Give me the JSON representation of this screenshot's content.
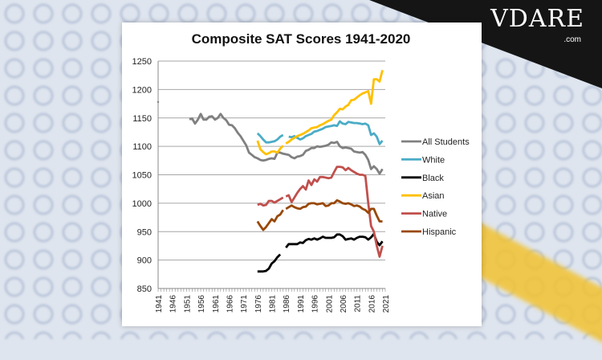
{
  "logo": {
    "text": "VDARE",
    "suffix": ".com"
  },
  "chart_data": {
    "type": "line",
    "title": "Composite SAT Scores 1941-2020",
    "xlabel": "",
    "ylabel": "",
    "xlim": [
      1941,
      2021
    ],
    "ylim": [
      850,
      1250
    ],
    "yticks": [
      850,
      900,
      950,
      1000,
      1050,
      1100,
      1150,
      1200,
      1250
    ],
    "xticks": [
      1941,
      1946,
      1951,
      1956,
      1961,
      1966,
      1971,
      1976,
      1981,
      1986,
      1991,
      1996,
      2001,
      2006,
      2011,
      2016,
      2021
    ],
    "grid": "horizontal",
    "legend": "right",
    "series": [
      {
        "name": "All Students",
        "color": "#808080",
        "points": [
          [
            1941,
            1178
          ],
          null,
          [
            1952,
            1148
          ],
          [
            1953,
            1149
          ],
          [
            1954,
            1140
          ],
          [
            1955,
            1147
          ],
          [
            1956,
            1157
          ],
          [
            1957,
            1147
          ],
          [
            1958,
            1147
          ],
          [
            1959,
            1152
          ],
          [
            1960,
            1153
          ],
          [
            1961,
            1147
          ],
          [
            1962,
            1150
          ],
          [
            1963,
            1157
          ],
          [
            1964,
            1150
          ],
          [
            1965,
            1146
          ],
          [
            1966,
            1138
          ],
          [
            1967,
            1137
          ],
          [
            1968,
            1132
          ],
          [
            1969,
            1124
          ],
          [
            1970,
            1118
          ],
          [
            1971,
            1110
          ],
          [
            1972,
            1102
          ],
          [
            1973,
            1089
          ],
          [
            1974,
            1085
          ],
          [
            1975,
            1081
          ],
          [
            1976,
            1079
          ],
          [
            1977,
            1076
          ],
          [
            1978,
            1075
          ],
          [
            1979,
            1076
          ],
          [
            1980,
            1078
          ],
          [
            1981,
            1079
          ],
          [
            1982,
            1078
          ],
          [
            1983,
            1089
          ],
          [
            1984,
            1089
          ],
          [
            1985,
            1087
          ],
          [
            1986,
            1086
          ],
          [
            1987,
            1085
          ],
          [
            1988,
            1081
          ],
          [
            1989,
            1079
          ],
          [
            1990,
            1082
          ],
          [
            1991,
            1083
          ],
          [
            1992,
            1085
          ],
          [
            1993,
            1092
          ],
          [
            1994,
            1094
          ],
          [
            1995,
            1097
          ],
          [
            1996,
            1097
          ],
          [
            1997,
            1100
          ],
          [
            1998,
            1099
          ],
          [
            1999,
            1100
          ],
          [
            2000,
            1101
          ],
          [
            2001,
            1103
          ],
          [
            2002,
            1107
          ],
          [
            2003,
            1106
          ],
          [
            2004,
            1108
          ],
          [
            2005,
            1100
          ],
          [
            2006,
            1097
          ],
          [
            2007,
            1098
          ],
          [
            2008,
            1097
          ],
          [
            2009,
            1096
          ],
          [
            2010,
            1091
          ],
          [
            2011,
            1090
          ],
          [
            2012,
            1089
          ],
          [
            2013,
            1090
          ],
          [
            2014,
            1085
          ],
          [
            2015,
            1076
          ],
          [
            2016,
            1060
          ],
          [
            2017,
            1065
          ],
          [
            2018,
            1060
          ],
          [
            2019,
            1052
          ],
          [
            2020,
            1060
          ]
        ]
      },
      {
        "name": "White",
        "color": "#4bacc6",
        "points": [
          [
            1976,
            1123
          ],
          [
            1977,
            1118
          ],
          [
            1978,
            1112
          ],
          [
            1979,
            1107
          ],
          [
            1980,
            1107
          ],
          [
            1981,
            1108
          ],
          [
            1982,
            1109
          ],
          [
            1983,
            1112
          ],
          [
            1984,
            1117
          ],
          [
            1985,
            1120
          ],
          null,
          [
            1987,
            1117
          ],
          [
            1988,
            1116
          ],
          [
            1989,
            1118
          ],
          [
            1990,
            1115
          ],
          [
            1991,
            1112
          ],
          [
            1992,
            1114
          ],
          [
            1993,
            1118
          ],
          [
            1994,
            1120
          ],
          [
            1995,
            1122
          ],
          [
            1996,
            1126
          ],
          [
            1997,
            1127
          ],
          [
            1998,
            1129
          ],
          [
            1999,
            1131
          ],
          [
            2000,
            1134
          ],
          [
            2001,
            1135
          ],
          [
            2002,
            1136
          ],
          [
            2003,
            1137
          ],
          [
            2004,
            1136
          ],
          [
            2005,
            1144
          ],
          [
            2006,
            1140
          ],
          [
            2007,
            1139
          ],
          [
            2008,
            1143
          ],
          [
            2009,
            1142
          ],
          [
            2010,
            1141
          ],
          [
            2011,
            1141
          ],
          [
            2012,
            1140
          ],
          [
            2013,
            1139
          ],
          [
            2014,
            1140
          ],
          [
            2015,
            1137
          ],
          [
            2016,
            1120
          ],
          [
            2017,
            1123
          ],
          [
            2018,
            1117
          ],
          [
            2019,
            1104
          ],
          [
            2020,
            1110
          ]
        ]
      },
      {
        "name": "Black",
        "color": "#000000",
        "points": [
          [
            1976,
            880
          ],
          [
            1977,
            880
          ],
          [
            1978,
            880
          ],
          [
            1979,
            881
          ],
          [
            1980,
            885
          ],
          [
            1981,
            894
          ],
          [
            1982,
            898
          ],
          [
            1983,
            905
          ],
          [
            1984,
            910
          ],
          null,
          [
            1986,
            922
          ],
          [
            1987,
            928
          ],
          [
            1988,
            928
          ],
          [
            1989,
            928
          ],
          [
            1990,
            928
          ],
          [
            1991,
            931
          ],
          [
            1992,
            930
          ],
          [
            1993,
            935
          ],
          [
            1994,
            937
          ],
          [
            1995,
            936
          ],
          [
            1996,
            938
          ],
          [
            1997,
            936
          ],
          [
            1998,
            938
          ],
          [
            1999,
            941
          ],
          [
            2000,
            939
          ],
          [
            2001,
            939
          ],
          [
            2002,
            939
          ],
          [
            2003,
            940
          ],
          [
            2004,
            945
          ],
          [
            2005,
            945
          ],
          [
            2006,
            942
          ],
          [
            2007,
            936
          ],
          [
            2008,
            937
          ],
          [
            2009,
            938
          ],
          [
            2010,
            936
          ],
          [
            2011,
            939
          ],
          [
            2012,
            941
          ],
          [
            2013,
            941
          ],
          [
            2014,
            940
          ],
          [
            2015,
            936
          ],
          [
            2016,
            940
          ],
          [
            2017,
            946
          ],
          [
            2018,
            932
          ],
          [
            2019,
            926
          ],
          [
            2020,
            933
          ]
        ]
      },
      {
        "name": "Asian",
        "color": "#ffc000",
        "points": [
          [
            1976,
            1110
          ],
          [
            1977,
            1095
          ],
          [
            1978,
            1090
          ],
          [
            1979,
            1086
          ],
          [
            1980,
            1088
          ],
          [
            1981,
            1091
          ],
          [
            1982,
            1091
          ],
          [
            1983,
            1089
          ],
          [
            1984,
            1096
          ],
          [
            1985,
            1101
          ],
          null,
          [
            1986,
            1105
          ],
          [
            1987,
            1108
          ],
          [
            1988,
            1112
          ],
          [
            1989,
            1115
          ],
          [
            1990,
            1118
          ],
          [
            1991,
            1120
          ],
          [
            1992,
            1122
          ],
          [
            1993,
            1125
          ],
          [
            1994,
            1128
          ],
          [
            1995,
            1132
          ],
          [
            1996,
            1133
          ],
          [
            1997,
            1134
          ],
          [
            1998,
            1137
          ],
          [
            1999,
            1139
          ],
          [
            2000,
            1142
          ],
          [
            2001,
            1145
          ],
          [
            2002,
            1147
          ],
          [
            2003,
            1155
          ],
          [
            2004,
            1160
          ],
          [
            2005,
            1166
          ],
          [
            2006,
            1165
          ],
          [
            2007,
            1170
          ],
          [
            2008,
            1173
          ],
          [
            2009,
            1181
          ],
          [
            2010,
            1182
          ],
          [
            2011,
            1186
          ],
          [
            2012,
            1190
          ],
          [
            2013,
            1193
          ],
          [
            2014,
            1195
          ],
          [
            2015,
            1197
          ],
          [
            2016,
            1175
          ],
          [
            2017,
            1218
          ],
          [
            2018,
            1218
          ],
          [
            2019,
            1214
          ],
          [
            2020,
            1234
          ]
        ]
      },
      {
        "name": "Native",
        "color": "#c0504d",
        "points": [
          [
            1976,
            997
          ],
          [
            1977,
            999
          ],
          [
            1978,
            996
          ],
          [
            1979,
            997
          ],
          [
            1980,
            1004
          ],
          [
            1981,
            1004
          ],
          [
            1982,
            1001
          ],
          [
            1983,
            1004
          ],
          [
            1984,
            1007
          ],
          [
            1985,
            1010
          ],
          null,
          [
            1986,
            1012
          ],
          [
            1987,
            1014
          ],
          [
            1988,
            1002
          ],
          [
            1989,
            1010
          ],
          [
            1990,
            1018
          ],
          [
            1991,
            1025
          ],
          [
            1992,
            1030
          ],
          [
            1993,
            1024
          ],
          [
            1994,
            1040
          ],
          [
            1995,
            1032
          ],
          [
            1996,
            1042
          ],
          [
            1997,
            1038
          ],
          [
            1998,
            1046
          ],
          [
            1999,
            1046
          ],
          [
            2000,
            1045
          ],
          [
            2001,
            1044
          ],
          [
            2002,
            1045
          ],
          [
            2003,
            1055
          ],
          [
            2004,
            1064
          ],
          [
            2005,
            1064
          ],
          [
            2006,
            1063
          ],
          [
            2007,
            1058
          ],
          [
            2008,
            1062
          ],
          [
            2009,
            1058
          ],
          [
            2010,
            1055
          ],
          [
            2011,
            1052
          ],
          [
            2012,
            1050
          ],
          [
            2013,
            1050
          ],
          [
            2014,
            1048
          ],
          [
            2015,
            1000
          ],
          [
            2016,
            960
          ],
          [
            2017,
            950
          ],
          [
            2018,
            925
          ],
          [
            2019,
            906
          ],
          [
            2020,
            925
          ]
        ]
      },
      {
        "name": "Hispanic",
        "color": "#984807",
        "points": [
          [
            1976,
            968
          ],
          [
            1977,
            960
          ],
          [
            1978,
            953
          ],
          [
            1979,
            958
          ],
          [
            1980,
            965
          ],
          [
            1981,
            972
          ],
          [
            1982,
            968
          ],
          [
            1983,
            977
          ],
          [
            1984,
            980
          ],
          [
            1985,
            988
          ],
          null,
          [
            1986,
            990
          ],
          [
            1987,
            993
          ],
          [
            1988,
            996
          ],
          [
            1989,
            993
          ],
          [
            1990,
            991
          ],
          [
            1991,
            990
          ],
          [
            1992,
            993
          ],
          [
            1993,
            994
          ],
          [
            1994,
            999
          ],
          [
            1995,
            1000
          ],
          [
            1996,
            1000
          ],
          [
            1997,
            998
          ],
          [
            1998,
            999
          ],
          [
            1999,
            1000
          ],
          [
            2000,
            995
          ],
          [
            2001,
            996
          ],
          [
            2002,
            1000
          ],
          [
            2003,
            1000
          ],
          [
            2004,
            1005
          ],
          [
            2005,
            1003
          ],
          [
            2006,
            1000
          ],
          [
            2007,
            999
          ],
          [
            2008,
            1000
          ],
          [
            2009,
            998
          ],
          [
            2010,
            995
          ],
          [
            2011,
            996
          ],
          [
            2012,
            994
          ],
          [
            2013,
            990
          ],
          [
            2014,
            988
          ],
          [
            2015,
            983
          ],
          [
            2016,
            990
          ],
          [
            2017,
            990
          ],
          [
            2018,
            978
          ],
          [
            2019,
            968
          ],
          [
            2020,
            968
          ]
        ]
      }
    ]
  }
}
